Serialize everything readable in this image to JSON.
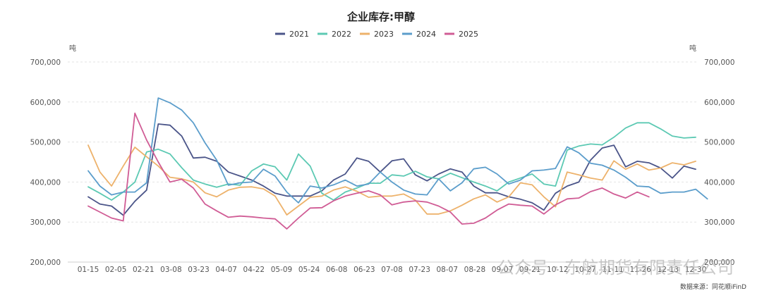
{
  "chart_data": {
    "type": "line",
    "title": "企业库存:甲醇",
    "unit_left": "吨",
    "unit_right": "吨",
    "ylim": [
      200000,
      700000
    ],
    "yticks": [
      200000,
      300000,
      400000,
      500000,
      600000,
      700000
    ],
    "ytick_labels": [
      "200,000",
      "300,000",
      "400,000",
      "500,000",
      "600,000",
      "700,000"
    ],
    "x_labels": [
      "01-15",
      "02-05",
      "02-21",
      "03-08",
      "03-23",
      "04-07",
      "04-22",
      "05-09",
      "05-24",
      "06-08",
      "06-23",
      "07-08",
      "07-23",
      "08-07",
      "08-28",
      "09-07",
      "09-21",
      "10-12",
      "10-27",
      "11-11",
      "11-26",
      "12-13",
      "12-30"
    ],
    "grid": true,
    "legend_position": "top-center",
    "source": "数据来源：同花顺iFinD",
    "watermark": "公众号 · 东航期货有限责任公司",
    "series": [
      {
        "name": "2021",
        "color": "#4b5589",
        "values": [
          363000,
          345000,
          340000,
          317000,
          352000,
          380000,
          545000,
          542000,
          515000,
          460000,
          462000,
          452000,
          425000,
          415000,
          405000,
          390000,
          372000,
          365000,
          365000,
          365000,
          378000,
          405000,
          420000,
          460000,
          452000,
          425000,
          453000,
          458000,
          418000,
          403000,
          420000,
          433000,
          425000,
          390000,
          373000,
          373000,
          363000,
          357000,
          348000,
          330000,
          372000,
          390000,
          400000,
          455000,
          485000,
          492000,
          438000,
          452000,
          448000,
          435000,
          410000,
          440000,
          432000
        ]
      },
      {
        "name": "2022",
        "color": "#5cc9b3",
        "values": [
          388000,
          372000,
          355000,
          375000,
          400000,
          475000,
          482000,
          470000,
          436000,
          405000,
          395000,
          387000,
          395000,
          392000,
          428000,
          445000,
          438000,
          405000,
          470000,
          440000,
          372000,
          355000,
          375000,
          385000,
          397000,
          397000,
          418000,
          415000,
          427000,
          413000,
          408000,
          422000,
          411000,
          400000,
          390000,
          378000,
          400000,
          410000,
          420000,
          395000,
          390000,
          480000,
          490000,
          495000,
          493000,
          512000,
          535000,
          548000,
          548000,
          533000,
          515000,
          510000,
          512000
        ]
      },
      {
        "name": "2023",
        "color": "#edb26b",
        "values": [
          492000,
          425000,
          390000,
          440000,
          487000,
          463000,
          440000,
          412000,
          408000,
          400000,
          373000,
          363000,
          380000,
          387000,
          388000,
          383000,
          365000,
          318000,
          340000,
          362000,
          365000,
          380000,
          388000,
          377000,
          362000,
          365000,
          365000,
          370000,
          355000,
          320000,
          320000,
          328000,
          342000,
          358000,
          368000,
          350000,
          363000,
          398000,
          393000,
          363000,
          338000,
          425000,
          418000,
          410000,
          405000,
          453000,
          432000,
          445000,
          430000,
          435000,
          448000,
          443000,
          452000
        ]
      },
      {
        "name": "2024",
        "color": "#5b9dcb",
        "values": [
          428000,
          390000,
          368000,
          375000,
          375000,
          398000,
          610000,
          598000,
          580000,
          548000,
          498000,
          455000,
          392000,
          398000,
          400000,
          432000,
          415000,
          375000,
          348000,
          390000,
          385000,
          393000,
          405000,
          390000,
          395000,
          425000,
          400000,
          380000,
          370000,
          368000,
          408000,
          378000,
          398000,
          433000,
          437000,
          420000,
          395000,
          405000,
          428000,
          430000,
          434000,
          488000,
          473000,
          447000,
          442000,
          430000,
          412000,
          390000,
          388000,
          372000,
          375000,
          375000,
          382000,
          358000
        ]
      },
      {
        "name": "2025",
        "color": "#d05c95",
        "values": [
          340000,
          325000,
          310000,
          303000,
          572000,
          505000,
          450000,
          400000,
          407000,
          385000,
          345000,
          328000,
          312000,
          315000,
          313000,
          310000,
          308000,
          283000,
          310000,
          335000,
          336000,
          353000,
          365000,
          372000,
          378000,
          368000,
          343000,
          350000,
          353000,
          350000,
          340000,
          325000,
          295000,
          297000,
          310000,
          330000,
          345000,
          342000,
          340000,
          320000,
          343000,
          358000,
          360000,
          376000,
          385000,
          370000,
          360000,
          375000,
          363000
        ]
      }
    ]
  }
}
